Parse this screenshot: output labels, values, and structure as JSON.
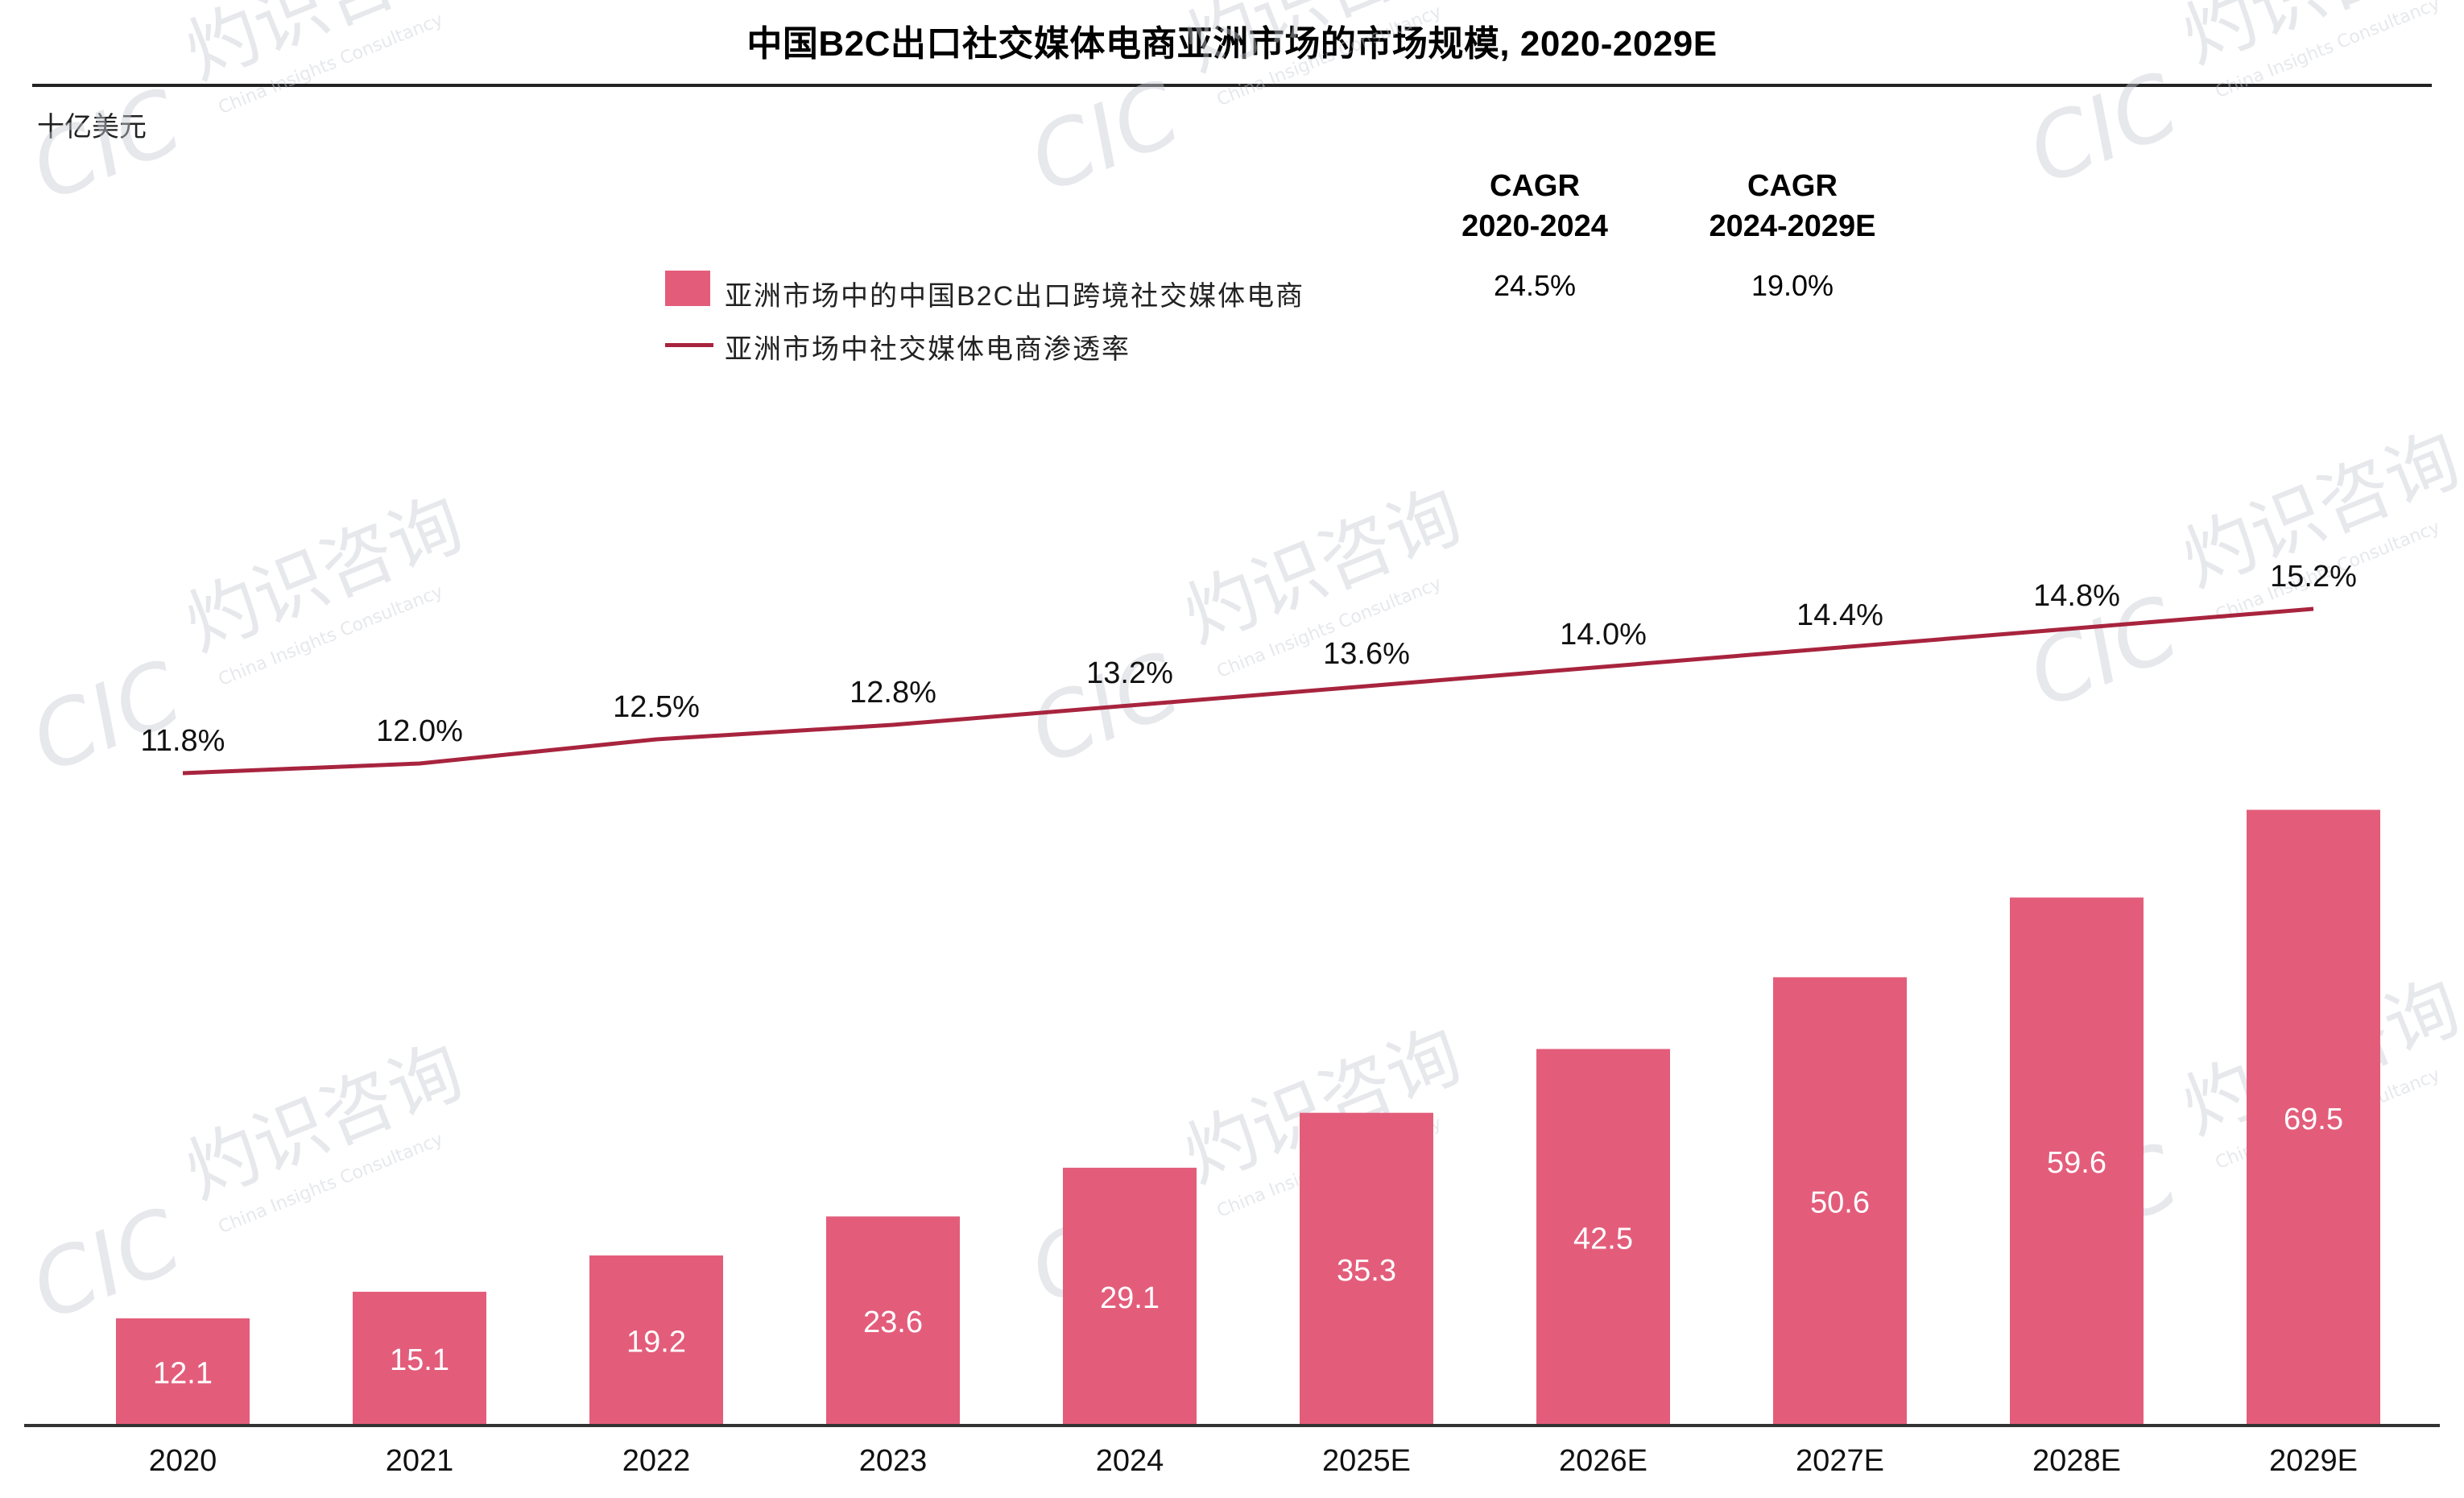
{
  "title": "中国B2C出口社交媒体电商亚洲市场的市场规模, 2020-2029E",
  "unit_label": "十亿美元",
  "cagr": [
    {
      "header_line1": "CAGR",
      "header_line2": "2020-2024",
      "value": "24.5%"
    },
    {
      "header_line1": "CAGR",
      "header_line2": "2024-2029E",
      "value": "19.0%"
    }
  ],
  "legend": {
    "bar_label": "亚洲市场中的中国B2C出口跨境社交媒体电商",
    "line_label": "亚洲市场中社交媒体电商渗透率"
  },
  "colors": {
    "bar": "#e35d7b",
    "line": "#a8243e",
    "bar_text": "#ffffff"
  },
  "watermark": {
    "text_cn": "灼识咨询",
    "text_en": "China Insights Consultancy",
    "logo": "CIC"
  },
  "chart_data": {
    "type": "bar",
    "categories": [
      "2020",
      "2021",
      "2022",
      "2023",
      "2024",
      "2025E",
      "2026E",
      "2027E",
      "2028E",
      "2029E"
    ],
    "series": [
      {
        "name": "亚洲市场中的中国B2C出口跨境社交媒体电商",
        "type": "bar",
        "values": [
          12.1,
          15.1,
          19.2,
          23.6,
          29.1,
          35.3,
          42.5,
          50.6,
          59.6,
          69.5
        ],
        "labels": [
          "12.1",
          "15.1",
          "19.2",
          "23.6",
          "29.1",
          "35.3",
          "42.5",
          "50.6",
          "59.6",
          "69.5"
        ]
      },
      {
        "name": "亚洲市场中社交媒体电商渗透率",
        "type": "line",
        "values": [
          11.8,
          12.0,
          12.5,
          12.8,
          13.2,
          13.6,
          14.0,
          14.4,
          14.8,
          15.2
        ],
        "labels": [
          "11.8%",
          "12.0%",
          "12.5%",
          "12.8%",
          "13.2%",
          "13.6%",
          "14.0%",
          "14.4%",
          "14.8%",
          "15.2%"
        ]
      }
    ],
    "ylabel": "十亿美元",
    "bar_ylim": [
      0,
      80
    ],
    "line_ylim": [
      0,
      16
    ],
    "grid": false,
    "legend_position": "top"
  }
}
